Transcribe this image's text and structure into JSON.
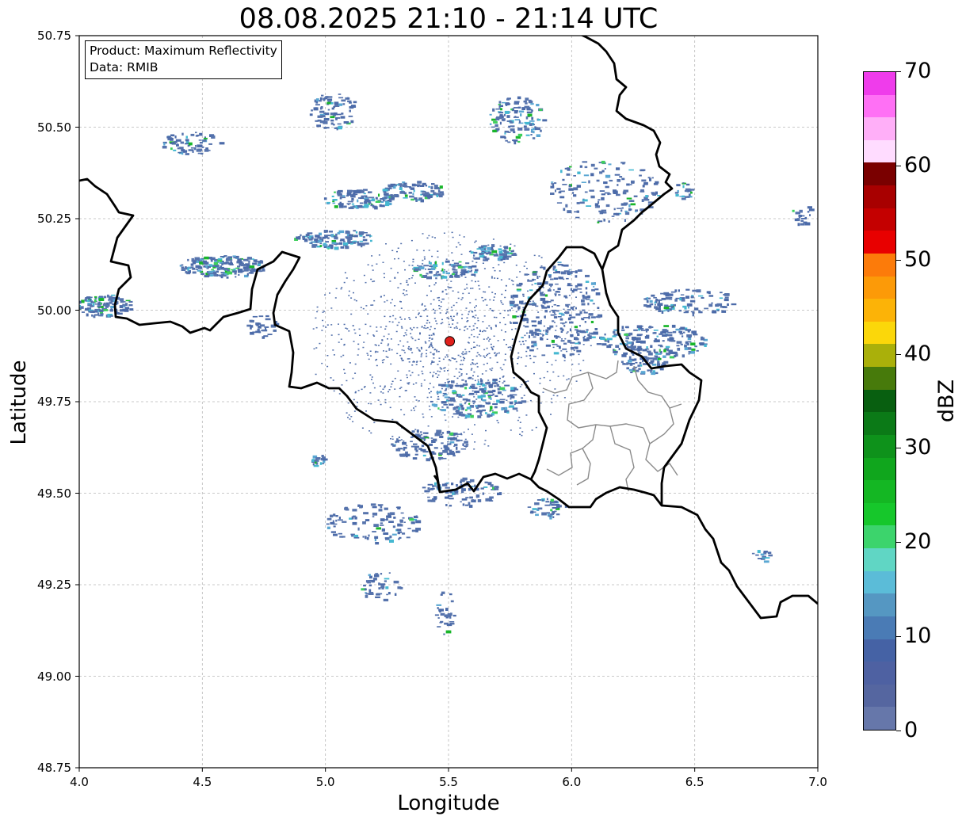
{
  "title": "08.08.2025 21:10 - 21:14 UTC",
  "xlabel": "Longitude",
  "ylabel": "Latitude",
  "x_range": [
    4.0,
    7.0
  ],
  "y_range": [
    48.75,
    50.75
  ],
  "x_ticks": [
    "4.0",
    "4.5",
    "5.0",
    "5.5",
    "6.0",
    "6.5",
    "7.0"
  ],
  "y_ticks": [
    "50.75",
    "50.50",
    "50.25",
    "50.00",
    "49.75",
    "49.50",
    "49.25",
    "49.00",
    "48.75"
  ],
  "grid": true,
  "info": {
    "product": "Product: Maximum Reflectivity",
    "source": "Data: RMIB"
  },
  "radar_site": {
    "lon": 5.505,
    "lat": 49.915,
    "color": "#e0201b"
  },
  "colorbar": {
    "label": "dBZ",
    "min": 0,
    "max": 70,
    "ticks": [
      "0",
      "10",
      "20",
      "30",
      "40",
      "50",
      "60",
      "70"
    ],
    "colors": [
      "#6677aa",
      "#5566a0",
      "#4e61a2",
      "#4562a5",
      "#4a7bb5",
      "#5597c2",
      "#5bbcd8",
      "#60d6c4",
      "#3cd46c",
      "#16c72b",
      "#14b723",
      "#10a61d",
      "#0e921b",
      "#0b7a17",
      "#085f10",
      "#477a0b",
      "#aab00a",
      "#fbd70a",
      "#fcb307",
      "#fc9a08",
      "#fc7b0a",
      "#e80000",
      "#c40000",
      "#a80000",
      "#7a0000",
      "#ffdcff",
      "#ffaff8",
      "#ff70f5",
      "#ef3ceb"
    ]
  },
  "map_layers": {
    "borders": "country",
    "provinces": "Luxembourg cantons",
    "echo_colors": [
      "#5774ad",
      "#4c6ba9",
      "#5aa7d3",
      "#45b8d1",
      "#3ecf5d",
      "#19b62a"
    ]
  }
}
